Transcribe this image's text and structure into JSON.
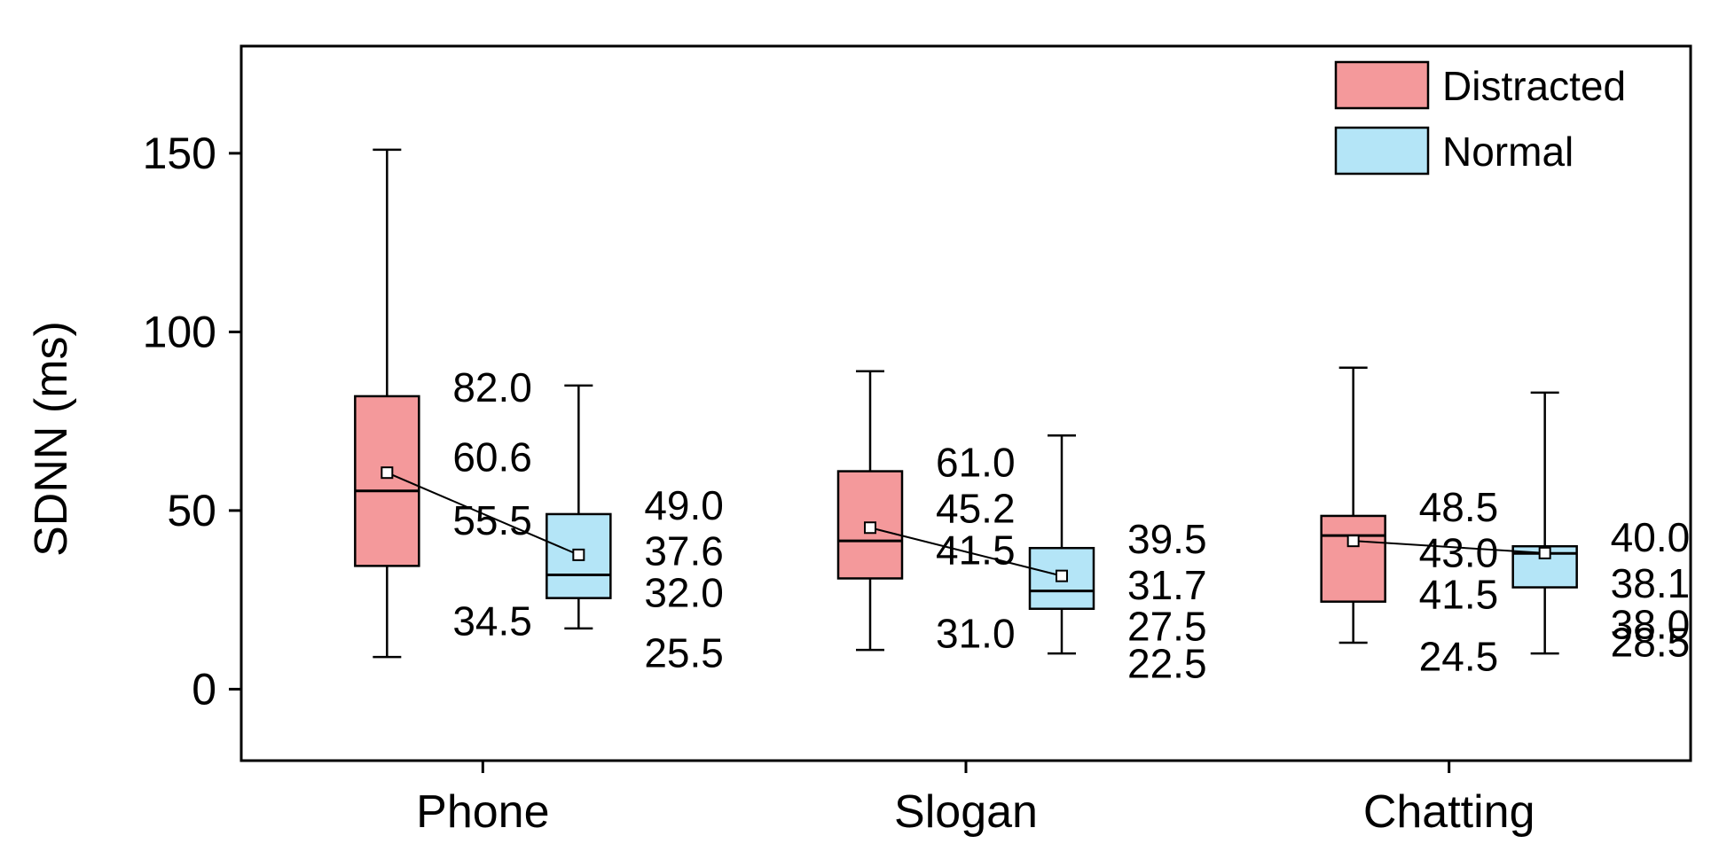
{
  "chart_data": {
    "type": "box",
    "ylabel": "SDNN (ms)",
    "ylim": [
      -20,
      180
    ],
    "yticks": [
      0,
      50,
      100,
      150
    ],
    "categories": [
      "Phone",
      "Slogan",
      "Chatting"
    ],
    "legend": {
      "placement": "top-right"
    },
    "series": [
      {
        "name": "Distracted",
        "color": "#f4999b",
        "boxes": [
          {
            "min": 9,
            "q1": 34.5,
            "median": 55.5,
            "mean": 60.6,
            "q3": 82.0,
            "max": 151,
            "labels": [
              "82.0",
              "60.6",
              "55.5",
              "34.5"
            ]
          },
          {
            "min": 11,
            "q1": 31.0,
            "median": 41.5,
            "mean": 45.2,
            "q3": 61.0,
            "max": 89,
            "labels": [
              "61.0",
              "45.2",
              "41.5",
              "31.0"
            ]
          },
          {
            "min": 13,
            "q1": 24.5,
            "median": 43.0,
            "mean": 41.5,
            "q3": 48.5,
            "max": 90,
            "labels": [
              "48.5",
              "43.0",
              "41.5",
              "24.5"
            ]
          }
        ]
      },
      {
        "name": "Normal",
        "color": "#b4e5f7",
        "boxes": [
          {
            "min": 17,
            "q1": 25.5,
            "median": 32.0,
            "mean": 37.6,
            "q3": 49.0,
            "max": 85,
            "labels": [
              "49.0",
              "37.6",
              "32.0",
              "25.5"
            ]
          },
          {
            "min": 10,
            "q1": 22.5,
            "median": 27.5,
            "mean": 31.7,
            "q3": 39.5,
            "max": 71,
            "labels": [
              "39.5",
              "31.7",
              "27.5",
              "22.5"
            ]
          },
          {
            "min": 10,
            "q1": 28.5,
            "median": 38.0,
            "mean": 38.1,
            "q3": 40.0,
            "max": 83,
            "labels": [
              "40.0",
              "38.1",
              "38.0",
              "28.5"
            ]
          }
        ]
      }
    ]
  }
}
